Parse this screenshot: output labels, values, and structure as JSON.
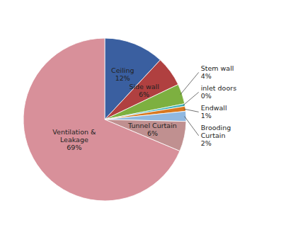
{
  "chart_data": {
    "type": "pie",
    "categories": [
      "Ceiling",
      "Side wall",
      "Stem wall",
      "inlet doors",
      "Endwall",
      "Brooding\nCurtain",
      "Tunnel Curtain",
      "Ventilation &\nLeakage"
    ],
    "values": [
      12,
      6,
      4,
      0.5,
      1,
      2,
      6,
      69
    ],
    "value_labels": [
      "12%",
      "6%",
      "4%",
      "0%",
      "1%",
      "2%",
      "6%",
      "69%"
    ],
    "colors": [
      "#3a5fa0",
      "#b04040",
      "#7db040",
      "#3ab0b8",
      "#d87820",
      "#90b8e0",
      "#c09090",
      "#d8909a"
    ],
    "data_labels": true
  }
}
